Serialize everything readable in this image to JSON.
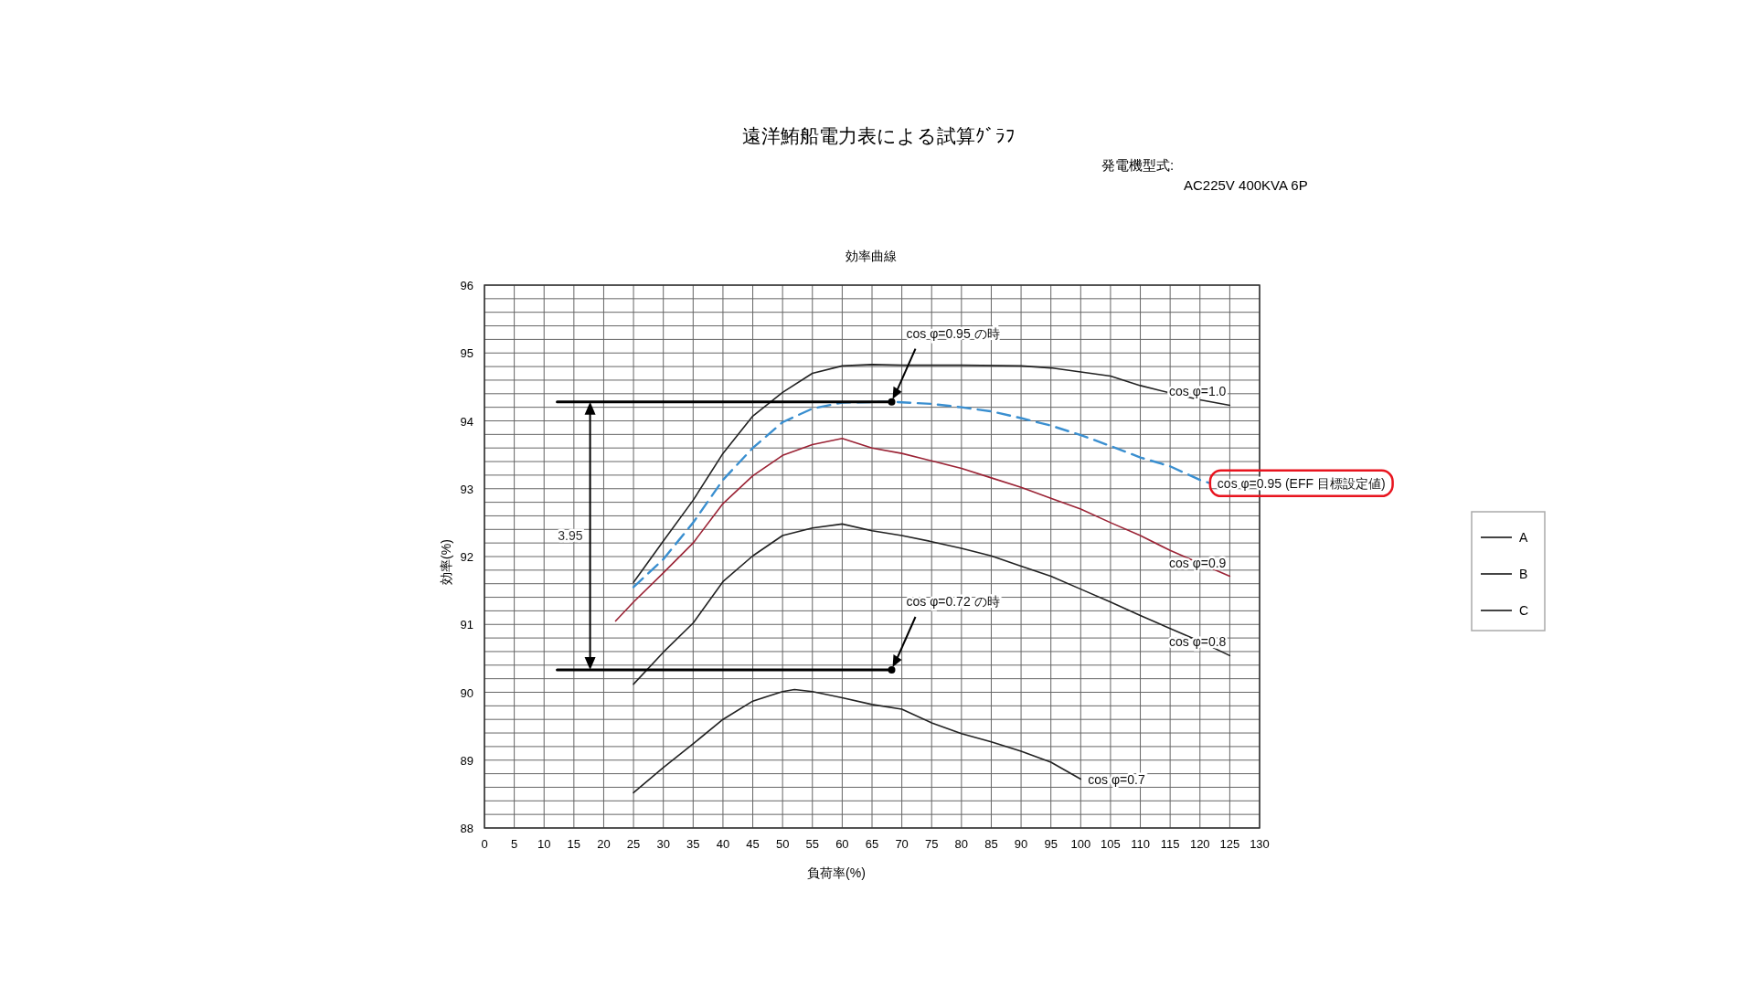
{
  "chart_data": {
    "type": "line",
    "title": "遠洋鮪船電力表による試算ｸﾞﾗﾌ",
    "subtitle": "効率曲線",
    "xlabel": "負荷率(%)",
    "ylabel": "効率(%)",
    "xlim": [
      0,
      130
    ],
    "ylim": [
      88,
      96
    ],
    "grid": true,
    "xticks": [
      0,
      5,
      10,
      15,
      20,
      25,
      30,
      35,
      40,
      45,
      50,
      55,
      60,
      65,
      70,
      75,
      80,
      85,
      90,
      95,
      100,
      105,
      110,
      115,
      120,
      125,
      130
    ],
    "yticks": [
      88,
      {
        "value": 88.2,
        "label": null
      },
      {
        "value": 88.4,
        "label": null
      },
      {
        "value": 88.6,
        "label": null
      },
      {
        "value": 88.8,
        "label": null
      },
      89,
      {
        "value": 89.2,
        "label": null
      },
      {
        "value": 89.4,
        "label": null
      },
      {
        "value": 89.6,
        "label": null
      },
      {
        "value": 89.8,
        "label": null
      },
      90,
      {
        "value": 90.2,
        "label": null
      },
      {
        "value": 90.4,
        "label": null
      },
      {
        "value": 90.6,
        "label": null
      },
      {
        "value": 90.8,
        "label": null
      },
      91,
      {
        "value": 91.2,
        "label": null
      },
      {
        "value": 91.4,
        "label": null
      },
      {
        "value": 91.6,
        "label": null
      },
      {
        "value": 91.8,
        "label": null
      },
      92,
      {
        "value": 92.2,
        "label": null
      },
      {
        "value": 92.4,
        "label": null
      },
      {
        "value": 92.6,
        "label": null
      },
      {
        "value": 92.8,
        "label": null
      },
      93,
      {
        "value": 93.2,
        "label": null
      },
      {
        "value": 93.4,
        "label": null
      },
      {
        "value": 93.6,
        "label": null
      },
      {
        "value": 93.8,
        "label": null
      },
      94,
      {
        "value": 94.2,
        "label": null
      },
      {
        "value": 94.4,
        "label": null
      },
      {
        "value": 94.6,
        "label": null
      },
      {
        "value": 94.8,
        "label": null
      },
      95,
      {
        "value": 95.2,
        "label": null
      },
      {
        "value": 95.4,
        "label": null
      },
      {
        "value": 95.6,
        "label": null
      },
      {
        "value": 95.8,
        "label": null
      },
      96
    ],
    "series": [
      {
        "name": "cos φ=1.0",
        "color": "#222222",
        "line_style": "solid",
        "x": [
          25,
          30,
          35,
          40,
          45,
          50,
          55,
          60,
          65,
          70,
          80,
          90,
          95,
          100,
          105,
          110,
          115,
          120,
          125
        ],
        "values": [
          91.62,
          92.23,
          92.83,
          93.52,
          94.07,
          94.42,
          94.7,
          94.81,
          94.83,
          94.82,
          94.82,
          94.81,
          94.78,
          94.72,
          94.66,
          94.52,
          94.41,
          94.31,
          94.23
        ]
      },
      {
        "name": "cos φ=0.95 (EFF 目標設定値)",
        "color": "#3a8fd0",
        "line_style": "dashed",
        "x": [
          25,
          30,
          35,
          40,
          45,
          50,
          55,
          60,
          68.3,
          75,
          80,
          85,
          90,
          95,
          100,
          105,
          110,
          115,
          120,
          121.7
        ],
        "values": [
          91.55,
          91.96,
          92.5,
          93.13,
          93.6,
          93.98,
          94.18,
          94.27,
          94.28,
          94.25,
          94.2,
          94.14,
          94.04,
          93.93,
          93.79,
          93.63,
          93.46,
          93.33,
          93.13,
          93.08
        ]
      },
      {
        "name": "cos φ=0.9",
        "color": "#9b2335",
        "line_style": "solid",
        "x": [
          22,
          25,
          30,
          35,
          40,
          45,
          50,
          55,
          60,
          65,
          70,
          75,
          80,
          85,
          90,
          95,
          100,
          105,
          110,
          115,
          120,
          125
        ],
        "values": [
          91.05,
          91.33,
          91.76,
          92.2,
          92.78,
          93.19,
          93.49,
          93.65,
          93.74,
          93.6,
          93.52,
          93.41,
          93.3,
          93.16,
          93.02,
          92.86,
          92.7,
          92.5,
          92.31,
          92.09,
          91.9,
          91.71
        ]
      },
      {
        "name": "cos φ=0.8",
        "color": "#222222",
        "line_style": "solid",
        "x": [
          25,
          30,
          35,
          40,
          45,
          50,
          55,
          60,
          65,
          70,
          75,
          80,
          85,
          90,
          95,
          100,
          105,
          110,
          115,
          120,
          125
        ],
        "values": [
          90.12,
          90.59,
          91.02,
          91.63,
          92.01,
          92.31,
          92.42,
          92.48,
          92.38,
          92.31,
          92.22,
          92.12,
          92.01,
          91.86,
          91.71,
          91.52,
          91.33,
          91.13,
          90.94,
          90.75,
          90.54
        ]
      },
      {
        "name": "cos φ=0.7",
        "color": "#222222",
        "line_style": "solid",
        "x": [
          25,
          30,
          35,
          40,
          45,
          50,
          52,
          55,
          60,
          65,
          70,
          75,
          80,
          85,
          90,
          95,
          100
        ],
        "values": [
          88.52,
          88.89,
          89.24,
          89.6,
          89.87,
          90.01,
          90.04,
          90.01,
          89.92,
          89.82,
          89.75,
          89.55,
          89.39,
          89.27,
          89.13,
          88.97,
          88.72
        ]
      },
      {
        "color": "#000000",
        "line_style": "solid",
        "x": [
          12.2,
          68.3
        ],
        "values": [
          94.28,
          94.28
        ]
      },
      {
        "color": "#000000",
        "line_style": "solid",
        "x": [
          12.2,
          68.3
        ],
        "values": [
          90.33,
          90.33
        ]
      }
    ],
    "annotations": [
      {
        "text": "cos φ=0.95 の時",
        "x": 68.3,
        "y": 94.28
      },
      {
        "text": "cos φ=0.72 の時",
        "x": 68.3,
        "y": 90.33
      },
      "3.95",
      "発電機型式:",
      "AC225V 400KVA 6P",
      "A",
      "B",
      "C"
    ]
  }
}
